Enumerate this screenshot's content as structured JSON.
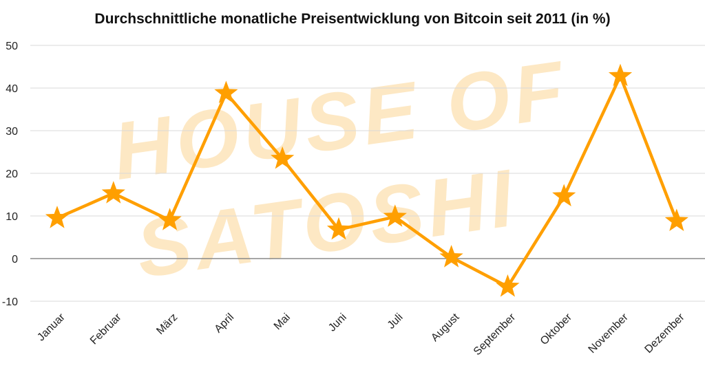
{
  "chart_data": {
    "type": "line",
    "title": "Durchschnittliche monatliche Preisentwicklung von Bitcoin seit 2011 (in %)",
    "xlabel": "",
    "ylabel": "",
    "categories": [
      "Januar",
      "Februar",
      "März",
      "April",
      "Mai",
      "Juni",
      "Juli",
      "August",
      "September",
      "Oktober",
      "November",
      "Dezember"
    ],
    "series": [
      {
        "values": [
          9.5,
          15.3,
          9.0,
          38.8,
          23.4,
          6.8,
          9.8,
          0.3,
          -6.6,
          14.6,
          42.8,
          8.8
        ]
      }
    ],
    "ylim": [
      -10,
      50
    ],
    "yticks": [
      50,
      40,
      30,
      20,
      10,
      0,
      -10
    ],
    "grid": true,
    "legend": "none",
    "marker": "star",
    "colors": {
      "line": "#ff9f00",
      "grid": "#d9d9d9",
      "zero_line": "#888888",
      "watermark": "#fde8c4"
    },
    "watermark": [
      "HOUSE OF",
      "SATOSHI"
    ]
  }
}
